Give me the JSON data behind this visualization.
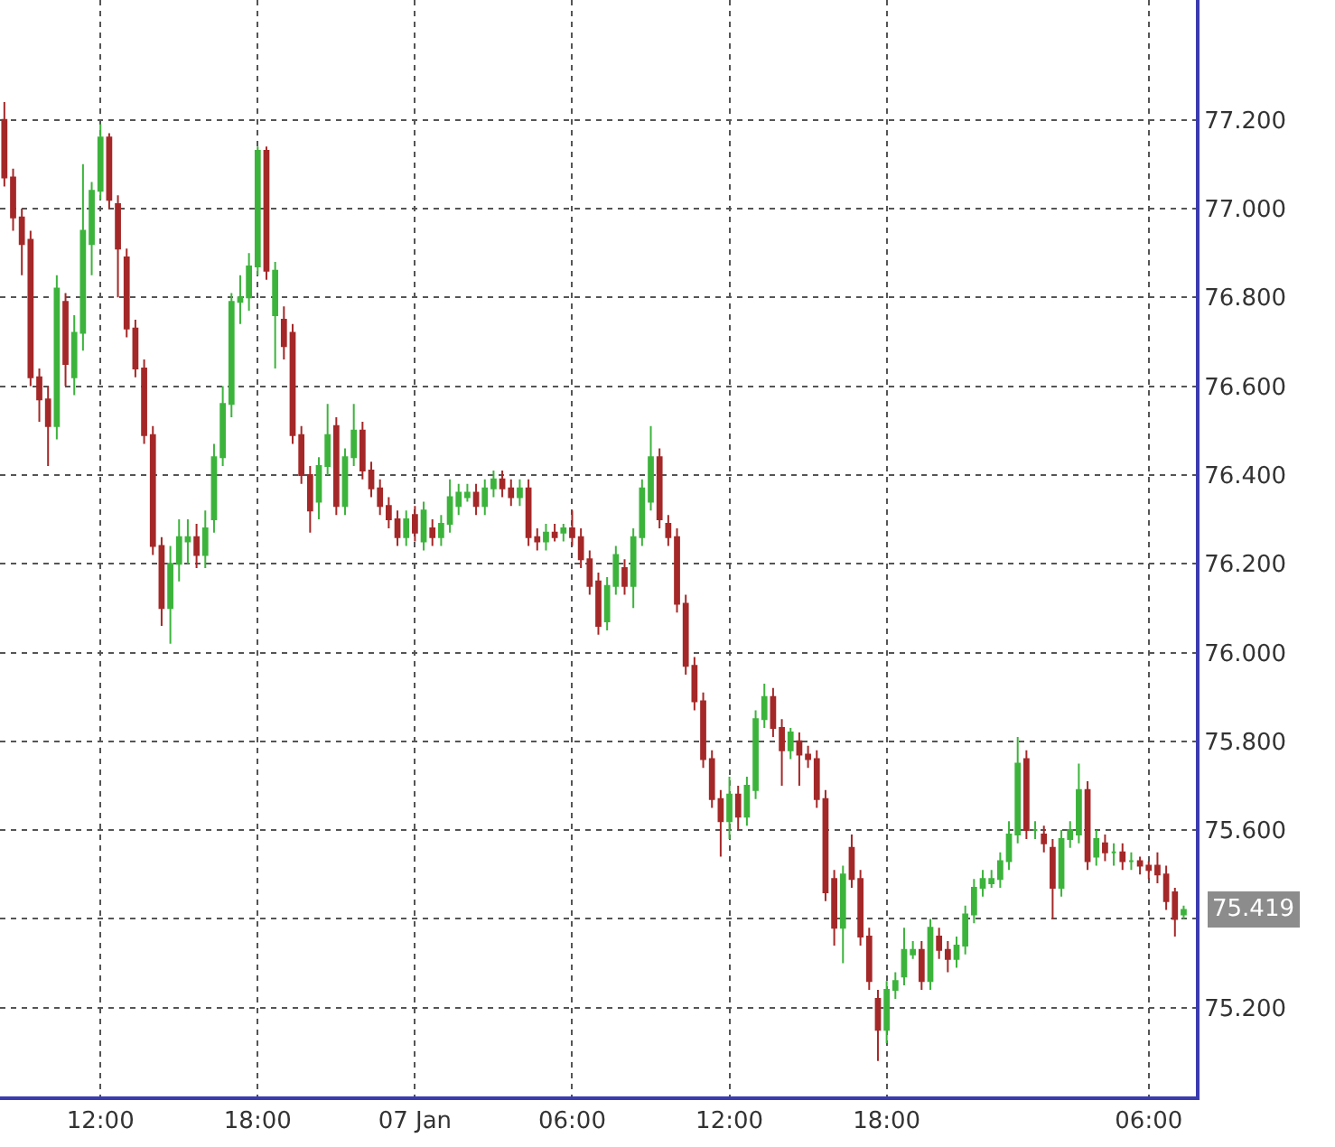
{
  "chart_data": {
    "type": "candlestick",
    "categories": [
      null,
      null,
      null,
      null,
      null,
      null,
      null,
      null,
      null,
      null,
      null,
      "12:00",
      null,
      null,
      null,
      null,
      null,
      null,
      null,
      null,
      null,
      null,
      null,
      null,
      null,
      null,
      null,
      null,
      null,
      "18:00",
      null,
      null,
      null,
      null,
      null,
      null,
      null,
      null,
      null,
      null,
      null,
      null,
      null,
      null,
      null,
      null,
      null,
      "07 Jan",
      null,
      null,
      null,
      null,
      null,
      null,
      null,
      null,
      null,
      null,
      null,
      null,
      null,
      null,
      null,
      null,
      null,
      "06:00",
      null,
      null,
      null,
      null,
      null,
      null,
      null,
      null,
      null,
      null,
      null,
      null,
      null,
      null,
      null,
      null,
      null,
      "12:00",
      null,
      null,
      null,
      null,
      null,
      null,
      null,
      null,
      null,
      null,
      null,
      null,
      null,
      null,
      null,
      null,
      null,
      "18:00",
      null,
      null,
      null,
      null,
      null,
      null,
      null,
      null,
      null,
      null,
      null,
      null,
      null,
      null,
      null,
      null,
      null,
      null,
      null,
      null,
      null,
      null,
      null,
      null,
      null,
      null,
      null,
      null,
      null,
      "06:00",
      null,
      null,
      null,
      null
    ],
    "ohlc": [
      [
        77.2,
        77.24,
        77.05,
        77.07
      ],
      [
        77.07,
        77.09,
        76.95,
        76.98
      ],
      [
        76.98,
        77.0,
        76.85,
        76.92
      ],
      [
        76.93,
        76.95,
        76.6,
        76.62
      ],
      [
        76.62,
        76.64,
        76.52,
        76.57
      ],
      [
        76.57,
        76.6,
        76.42,
        76.51
      ],
      [
        76.51,
        76.85,
        76.48,
        76.82
      ],
      [
        76.79,
        76.81,
        76.6,
        76.65
      ],
      [
        76.62,
        76.76,
        76.58,
        76.72
      ],
      [
        76.72,
        77.1,
        76.68,
        76.95
      ],
      [
        76.92,
        77.06,
        76.85,
        77.04
      ],
      [
        77.04,
        77.19,
        77.02,
        77.16
      ],
      [
        77.16,
        77.17,
        77.0,
        77.02
      ],
      [
        77.01,
        77.03,
        76.8,
        76.91
      ],
      [
        76.89,
        76.91,
        76.71,
        76.73
      ],
      [
        76.73,
        76.75,
        76.62,
        76.64
      ],
      [
        76.64,
        76.66,
        76.47,
        76.49
      ],
      [
        76.49,
        76.51,
        76.22,
        76.24
      ],
      [
        76.24,
        76.26,
        76.06,
        76.1
      ],
      [
        76.1,
        76.24,
        76.02,
        76.2
      ],
      [
        76.2,
        76.3,
        76.16,
        76.26
      ],
      [
        76.25,
        76.3,
        76.2,
        76.26
      ],
      [
        76.26,
        76.29,
        76.19,
        76.22
      ],
      [
        76.22,
        76.32,
        76.19,
        76.28
      ],
      [
        76.3,
        76.47,
        76.27,
        76.44
      ],
      [
        76.44,
        76.6,
        76.42,
        76.56
      ],
      [
        76.56,
        76.81,
        76.53,
        76.79
      ],
      [
        76.79,
        76.85,
        76.74,
        76.8
      ],
      [
        76.8,
        76.9,
        76.77,
        76.87
      ],
      [
        76.87,
        77.14,
        76.85,
        77.13
      ],
      [
        77.13,
        77.14,
        76.84,
        76.86
      ],
      [
        76.76,
        76.88,
        76.64,
        76.86
      ],
      [
        76.75,
        76.78,
        76.66,
        76.69
      ],
      [
        76.72,
        76.74,
        76.47,
        76.49
      ],
      [
        76.49,
        76.51,
        76.38,
        76.4
      ],
      [
        76.4,
        76.42,
        76.27,
        76.32
      ],
      [
        76.34,
        76.44,
        76.3,
        76.42
      ],
      [
        76.42,
        76.56,
        76.4,
        76.49
      ],
      [
        76.51,
        76.53,
        76.31,
        76.33
      ],
      [
        76.33,
        76.46,
        76.31,
        76.44
      ],
      [
        76.44,
        76.56,
        76.42,
        76.5
      ],
      [
        76.5,
        76.52,
        76.39,
        76.41
      ],
      [
        76.41,
        76.43,
        76.35,
        76.37
      ],
      [
        76.37,
        76.39,
        76.31,
        76.33
      ],
      [
        76.33,
        76.35,
        76.28,
        76.3
      ],
      [
        76.3,
        76.32,
        76.24,
        76.26
      ],
      [
        76.26,
        76.32,
        76.24,
        76.3
      ],
      [
        76.31,
        76.33,
        76.25,
        76.27
      ],
      [
        76.25,
        76.34,
        76.23,
        76.32
      ],
      [
        76.28,
        76.3,
        76.24,
        76.26
      ],
      [
        76.26,
        76.31,
        76.24,
        76.29
      ],
      [
        76.29,
        76.39,
        76.27,
        76.35
      ],
      [
        76.33,
        76.38,
        76.31,
        76.36
      ],
      [
        76.35,
        76.38,
        76.34,
        76.36
      ],
      [
        76.36,
        76.38,
        76.31,
        76.33
      ],
      [
        76.33,
        76.39,
        76.31,
        76.37
      ],
      [
        76.37,
        76.41,
        76.35,
        76.39
      ],
      [
        76.39,
        76.41,
        76.35,
        76.37
      ],
      [
        76.37,
        76.39,
        76.33,
        76.35
      ],
      [
        76.35,
        76.39,
        76.33,
        76.37
      ],
      [
        76.37,
        76.39,
        76.24,
        76.26
      ],
      [
        76.26,
        76.28,
        76.23,
        76.25
      ],
      [
        76.25,
        76.29,
        76.23,
        76.27
      ],
      [
        76.27,
        76.29,
        76.25,
        76.26
      ],
      [
        76.27,
        76.29,
        76.25,
        76.28
      ],
      [
        76.28,
        76.32,
        76.24,
        76.26
      ],
      [
        76.26,
        76.28,
        76.19,
        76.21
      ],
      [
        76.21,
        76.23,
        76.13,
        76.15
      ],
      [
        76.16,
        76.18,
        76.04,
        76.06
      ],
      [
        76.07,
        76.17,
        76.05,
        76.15
      ],
      [
        76.15,
        76.24,
        76.13,
        76.22
      ],
      [
        76.19,
        76.21,
        76.13,
        76.15
      ],
      [
        76.15,
        76.28,
        76.1,
        76.26
      ],
      [
        76.26,
        76.39,
        76.24,
        76.37
      ],
      [
        76.34,
        76.51,
        76.32,
        76.44
      ],
      [
        76.44,
        76.46,
        76.28,
        76.3
      ],
      [
        76.29,
        76.31,
        76.24,
        76.26
      ],
      [
        76.26,
        76.28,
        76.09,
        76.11
      ],
      [
        76.11,
        76.13,
        75.95,
        75.97
      ],
      [
        75.97,
        75.99,
        75.87,
        75.89
      ],
      [
        75.89,
        75.91,
        75.74,
        75.76
      ],
      [
        75.76,
        75.78,
        75.65,
        75.67
      ],
      [
        75.67,
        75.69,
        75.54,
        75.62
      ],
      [
        75.62,
        75.72,
        75.58,
        75.68
      ],
      [
        75.68,
        75.7,
        75.6,
        75.63
      ],
      [
        75.63,
        75.72,
        75.61,
        75.7
      ],
      [
        75.69,
        75.87,
        75.67,
        75.85
      ],
      [
        75.85,
        75.93,
        75.83,
        75.9
      ],
      [
        75.9,
        75.92,
        75.81,
        75.83
      ],
      [
        75.83,
        75.85,
        75.7,
        75.78
      ],
      [
        75.78,
        75.83,
        75.76,
        75.82
      ],
      [
        75.8,
        75.82,
        75.7,
        75.77
      ],
      [
        75.77,
        75.79,
        75.74,
        75.76
      ],
      [
        75.76,
        75.78,
        75.65,
        75.67
      ],
      [
        75.67,
        75.69,
        75.44,
        75.46
      ],
      [
        75.49,
        75.51,
        75.34,
        75.38
      ],
      [
        75.38,
        75.52,
        75.3,
        75.5
      ],
      [
        75.56,
        75.59,
        75.47,
        75.49
      ],
      [
        75.49,
        75.51,
        75.34,
        75.36
      ],
      [
        75.36,
        75.38,
        75.24,
        75.26
      ],
      [
        75.22,
        75.24,
        75.08,
        75.15
      ],
      [
        75.15,
        75.26,
        75.12,
        75.24
      ],
      [
        75.24,
        75.28,
        75.22,
        75.26
      ],
      [
        75.27,
        75.38,
        75.25,
        75.33
      ],
      [
        75.32,
        75.35,
        75.31,
        75.33
      ],
      [
        75.33,
        75.35,
        75.24,
        75.26
      ],
      [
        75.26,
        75.4,
        75.24,
        75.38
      ],
      [
        75.36,
        75.38,
        75.31,
        75.33
      ],
      [
        75.33,
        75.35,
        75.28,
        75.31
      ],
      [
        75.31,
        75.36,
        75.29,
        75.34
      ],
      [
        75.34,
        75.43,
        75.32,
        75.41
      ],
      [
        75.41,
        75.49,
        75.39,
        75.47
      ],
      [
        75.47,
        75.51,
        75.45,
        75.49
      ],
      [
        75.48,
        75.51,
        75.47,
        75.49
      ],
      [
        75.49,
        75.55,
        75.47,
        75.53
      ],
      [
        75.53,
        75.62,
        75.51,
        75.59
      ],
      [
        75.59,
        75.81,
        75.57,
        75.75
      ],
      [
        75.76,
        75.78,
        75.58,
        75.6
      ],
      [
        75.6,
        75.62,
        75.58,
        75.6
      ],
      [
        75.59,
        75.61,
        75.55,
        75.57
      ],
      [
        75.56,
        75.58,
        75.4,
        75.47
      ],
      [
        75.47,
        75.6,
        75.45,
        75.58
      ],
      [
        75.58,
        75.62,
        75.56,
        75.6
      ],
      [
        75.59,
        75.75,
        75.57,
        75.69
      ],
      [
        75.69,
        75.71,
        75.51,
        75.53
      ],
      [
        75.54,
        75.6,
        75.52,
        75.58
      ],
      [
        75.57,
        75.59,
        75.53,
        75.55
      ],
      [
        75.55,
        75.57,
        75.52,
        75.55
      ],
      [
        75.55,
        75.57,
        75.51,
        75.53
      ],
      [
        75.53,
        75.55,
        75.51,
        75.53
      ],
      [
        75.53,
        75.54,
        75.5,
        75.52
      ],
      [
        75.52,
        75.53,
        75.49,
        75.51
      ],
      [
        75.52,
        75.55,
        75.48,
        75.5
      ],
      [
        75.5,
        75.52,
        75.42,
        75.44
      ],
      [
        75.46,
        75.47,
        75.36,
        75.4
      ],
      [
        75.41,
        75.43,
        75.4,
        75.42
      ]
    ],
    "colors": [
      "#a52828",
      "#a52828",
      "#a52828",
      "#a52828",
      "#a52828",
      "#a52828",
      "#3cb43c",
      "#a52828",
      "#3cb43c",
      "#3cb43c",
      "#3cb43c",
      "#3cb43c",
      "#a52828",
      "#a52828",
      "#a52828",
      "#a52828",
      "#a52828",
      "#a52828",
      "#a52828",
      "#3cb43c",
      "#3cb43c",
      "#3cb43c",
      "#a52828",
      "#3cb43c",
      "#3cb43c",
      "#3cb43c",
      "#3cb43c",
      "#3cb43c",
      "#3cb43c",
      "#3cb43c",
      "#a52828",
      "#3cb43c",
      "#a52828",
      "#a52828",
      "#a52828",
      "#a52828",
      "#3cb43c",
      "#3cb43c",
      "#a52828",
      "#3cb43c",
      "#3cb43c",
      "#a52828",
      "#a52828",
      "#a52828",
      "#a52828",
      "#a52828",
      "#3cb43c",
      "#a52828",
      "#3cb43c",
      "#a52828",
      "#3cb43c",
      "#3cb43c",
      "#3cb43c",
      "#3cb43c",
      "#a52828",
      "#3cb43c",
      "#3cb43c",
      "#a52828",
      "#a52828",
      "#3cb43c",
      "#a52828",
      "#a52828",
      "#3cb43c",
      "#a52828",
      "#3cb43c",
      "#a52828",
      "#a52828",
      "#a52828",
      "#a52828",
      "#3cb43c",
      "#3cb43c",
      "#a52828",
      "#3cb43c",
      "#3cb43c",
      "#3cb43c",
      "#a52828",
      "#a52828",
      "#a52828",
      "#a52828",
      "#a52828",
      "#a52828",
      "#a52828",
      "#a52828",
      "#3cb43c",
      "#a52828",
      "#3cb43c",
      "#3cb43c",
      "#3cb43c",
      "#a52828",
      "#a52828",
      "#3cb43c",
      "#a52828",
      "#a52828",
      "#a52828",
      "#a52828",
      "#a52828",
      "#3cb43c",
      "#a52828",
      "#a52828",
      "#a52828",
      "#a52828",
      "#3cb43c",
      "#3cb43c",
      "#3cb43c",
      "#3cb43c",
      "#a52828",
      "#3cb43c",
      "#a52828",
      "#a52828",
      "#3cb43c",
      "#3cb43c",
      "#3cb43c",
      "#3cb43c",
      "#3cb43c",
      "#3cb43c",
      "#3cb43c",
      "#3cb43c",
      "#a52828",
      "#3cb43c",
      "#a52828",
      "#a52828",
      "#3cb43c",
      "#3cb43c",
      "#3cb43c",
      "#a52828",
      "#3cb43c",
      "#a52828",
      "#3cb43c",
      "#a52828",
      "#3cb43c",
      "#a52828",
      "#a52828",
      "#a52828",
      "#a52828",
      "#a52828",
      "#3cb43c"
    ],
    "ylim": [
      75.0,
      77.47
    ],
    "yticks": [
      {
        "value": 75.2,
        "label": "75.200"
      },
      {
        "value": 75.4,
        "label": null
      },
      {
        "value": 75.6,
        "label": "75.600"
      },
      {
        "value": 75.8,
        "label": "75.800"
      },
      {
        "value": 76.0,
        "label": "76.000"
      },
      {
        "value": 76.2,
        "label": "76.200"
      },
      {
        "value": 76.4,
        "label": "76.400"
      },
      {
        "value": 76.6,
        "label": "76.600"
      },
      {
        "value": 76.8,
        "label": "76.800"
      },
      {
        "value": 77.0,
        "label": "77.000"
      },
      {
        "value": 77.2,
        "label": "77.200"
      }
    ],
    "annotations": [
      "75.419"
    ],
    "grid": true
  }
}
